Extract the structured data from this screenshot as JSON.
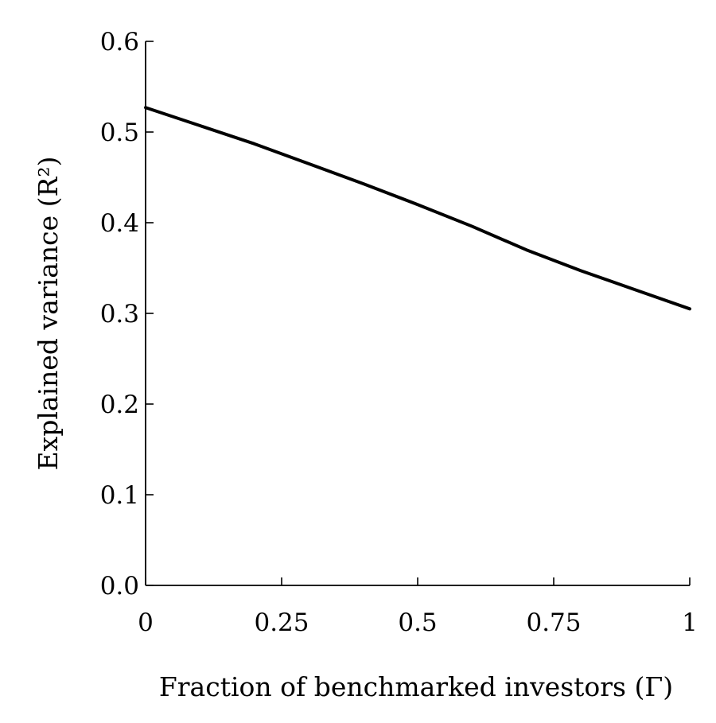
{
  "chart_data": {
    "type": "line",
    "xlabel": "Fraction of benchmarked investors (Γ)",
    "ylabel": "Explained variance (R²)",
    "xlim": [
      0,
      1
    ],
    "ylim": [
      0,
      0.6
    ],
    "x_ticks": [
      0,
      0.25,
      0.5,
      0.75,
      1
    ],
    "x_tick_labels": [
      "0",
      "0.25",
      "0.5",
      "0.75",
      "1"
    ],
    "y_ticks": [
      0,
      0.1,
      0.2,
      0.3,
      0.4,
      0.5,
      0.6
    ],
    "y_tick_labels": [
      "0.0",
      "0.1",
      "0.2",
      "0.3",
      "0.4",
      "0.5",
      "0.6"
    ],
    "grid": false,
    "line_color": "#000000",
    "series": [
      {
        "x": [
          0,
          0.1,
          0.2,
          0.3,
          0.4,
          0.5,
          0.6,
          0.7,
          0.8,
          0.9,
          1.0
        ],
        "y": [
          0.527,
          0.507,
          0.487,
          0.465,
          0.443,
          0.42,
          0.396,
          0.37,
          0.347,
          0.326,
          0.305
        ]
      }
    ]
  }
}
